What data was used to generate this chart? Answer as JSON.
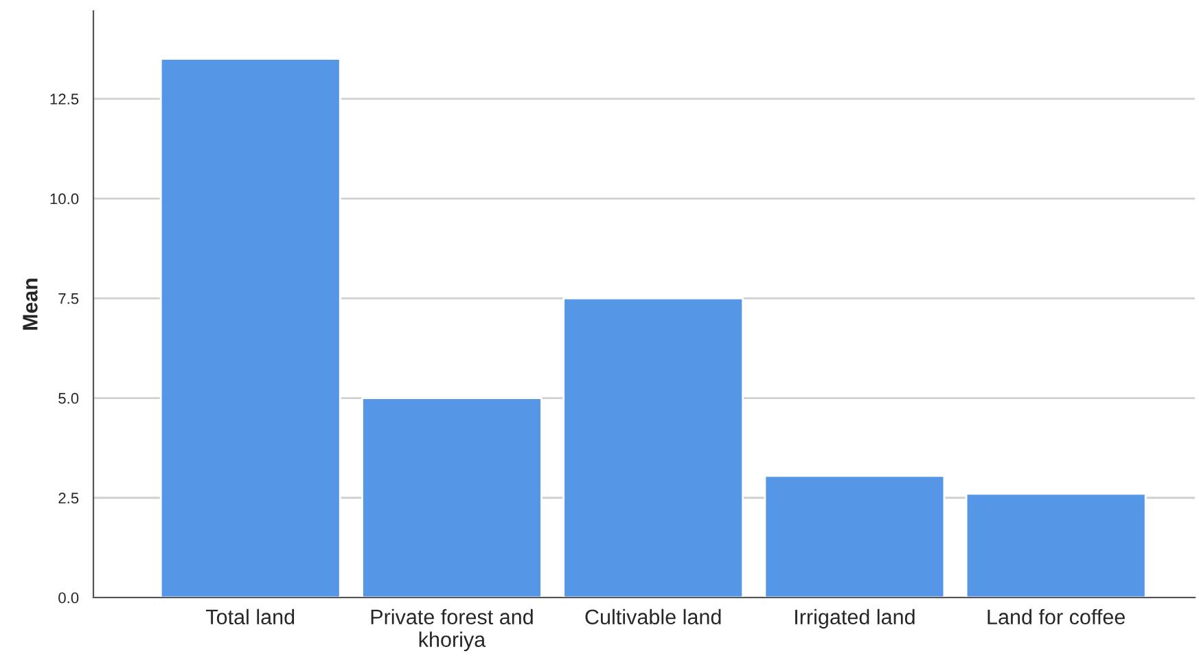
{
  "chart_data": {
    "type": "bar",
    "ylabel": "Mean",
    "categories": [
      "Total land",
      "Private forest and\nkhoriya",
      "Cultivable land",
      "Irrigated land",
      "Land for coffee"
    ],
    "values": [
      13.5,
      5.0,
      7.5,
      3.05,
      2.6
    ],
    "color": "#5596e6",
    "ylim": [
      0,
      14.7
    ],
    "yticks": [
      {
        "value": 0,
        "label": "0.0"
      },
      {
        "value": 2.5,
        "label": "2.5"
      },
      {
        "value": 5,
        "label": "5.0"
      },
      {
        "value": 7.5,
        "label": "7.5"
      },
      {
        "value": 10,
        "label": "10.0"
      },
      {
        "value": 12.5,
        "label": "12.5"
      }
    ],
    "grid": "y",
    "legend": false
  }
}
